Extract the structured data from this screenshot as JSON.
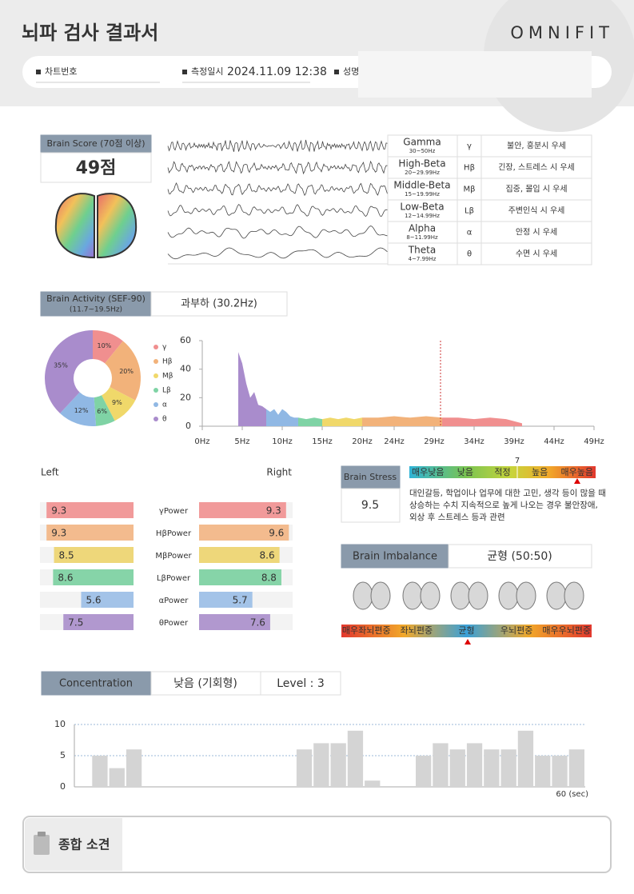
{
  "header": {
    "title": "뇌파 검사 결과서",
    "brand": "OMNIFIT",
    "fields": [
      {
        "label": "차트번호"
      },
      {
        "label": "측정일시",
        "value": "2024.11.09 12:38"
      },
      {
        "label": "성명"
      }
    ]
  },
  "brain_score": {
    "label": "Brain Score (70점 이상)",
    "value": "49점"
  },
  "wave_table": [
    {
      "name": "Gamma",
      "range": "30~50Hz",
      "symbol": "γ",
      "description": "불안, 흥분시 우세"
    },
    {
      "name": "High-Beta",
      "range": "20~29.99Hz",
      "symbol": "Hβ",
      "description": "긴장, 스트레스 시 우세"
    },
    {
      "name": "Middle-Beta",
      "range": "15~19.99Hz",
      "symbol": "Mβ",
      "description": "집중, 몰입 시 우세"
    },
    {
      "name": "Low-Beta",
      "range": "12~14.99Hz",
      "symbol": "Lβ",
      "description": "주변인식 시 우세"
    },
    {
      "name": "Alpha",
      "range": "8~11.99Hz",
      "symbol": "α",
      "description": "안정 시 우세"
    },
    {
      "name": "Theta",
      "range": "4~7.99Hz",
      "symbol": "θ",
      "description": "수면 시 우세"
    }
  ],
  "brain_activity": {
    "label": "Brain Activity (SEF-90)",
    "sublabel": "(11.7~19.5Hz)",
    "value": "과부하 (30.2Hz)"
  },
  "brain_stress": {
    "label": "Brain Stress",
    "value": "9.5",
    "scale": [
      "매우낮음",
      "낮음",
      "적정",
      "높음",
      "매우높음"
    ],
    "scale_marker": "7",
    "description": [
      "대인갈등, 학업이나 업무에 대한 고민, 생각 등이 많을 때",
      "상승하는 수치 지속적으로 높게 나오는 경우 불안장애,",
      "외상 후 스트레스 등과 관련"
    ]
  },
  "brain_imbalance": {
    "label": "Brain Imbalance",
    "value": "균형 (50:50)",
    "scale": [
      "매우좌뇌편중",
      "좌뇌편중",
      "균형",
      "우뇌편중",
      "매우우뇌편중"
    ]
  },
  "concentration": {
    "label": "Concentration",
    "value": "낮음 (기회형)",
    "level": "Level : 3"
  },
  "summary": {
    "title": "종합 소견"
  },
  "chart_data": [
    {
      "type": "pie",
      "categories": [
        "γ",
        "Hβ",
        "Mβ",
        "Lβ",
        "α",
        "θ"
      ],
      "values": [
        10,
        20,
        9,
        6,
        12,
        35
      ],
      "value_labels": [
        "10%",
        "20%",
        "9%",
        "6%",
        "12%",
        "35%"
      ],
      "colors": [
        "#f08f8f",
        "#f2b27a",
        "#f0d86a",
        "#7fd3a5",
        "#90b8e4",
        "#a98ccc"
      ]
    },
    {
      "type": "area",
      "series": [
        {
          "color": "#a98ccc",
          "x": [
            4.5,
            5,
            5.5,
            6,
            6.5,
            7,
            7.5,
            8
          ],
          "values": [
            52,
            44,
            30,
            20,
            24,
            15,
            14,
            12
          ]
        },
        {
          "color": "#90b8e4",
          "x": [
            8,
            8.5,
            9,
            9.5,
            10,
            10.5,
            11,
            11.5,
            12
          ],
          "values": [
            12,
            10,
            12,
            8,
            12,
            10,
            7,
            6,
            6
          ]
        },
        {
          "color": "#7fd3a5",
          "x": [
            12,
            13,
            14,
            15
          ],
          "values": [
            6,
            5,
            6,
            5
          ]
        },
        {
          "color": "#f0d86a",
          "x": [
            15,
            16,
            17,
            18,
            19,
            20
          ],
          "values": [
            5,
            6,
            5,
            6,
            5,
            6
          ]
        },
        {
          "color": "#f2b27a",
          "x": [
            20,
            22,
            24,
            26,
            28,
            30
          ],
          "values": [
            6,
            6,
            7,
            6,
            7,
            6
          ]
        },
        {
          "color": "#f08f8f",
          "x": [
            30,
            32,
            34,
            36,
            38,
            40
          ],
          "values": [
            6,
            6,
            5,
            6,
            5,
            2
          ]
        }
      ],
      "xlim": [
        0,
        49
      ],
      "ylim": [
        0,
        60
      ],
      "xticks": [
        {
          "value": 0,
          "label": "0Hz"
        },
        {
          "value": 5,
          "label": "5Hz"
        },
        {
          "value": 10,
          "label": "10Hz"
        },
        {
          "value": 15,
          "label": "15Hz"
        },
        {
          "value": 20,
          "label": "20Hz"
        },
        {
          "value": 24,
          "label": "24Hz"
        },
        {
          "value": 29,
          "label": "29Hz"
        },
        {
          "value": 34,
          "label": "34Hz"
        },
        {
          "value": 39,
          "label": "39Hz"
        },
        {
          "value": 44,
          "label": "44Hz"
        },
        {
          "value": 49,
          "label": "49Hz"
        }
      ],
      "yticks": [
        0,
        20,
        40,
        60
      ],
      "marker_x": 29.8
    },
    {
      "type": "butterfly",
      "categories": [
        "γPower",
        "HβPower",
        "MβPower",
        "LβPower",
        "αPower",
        "θPower"
      ],
      "colors": [
        "#f19a9a",
        "#f3bb8e",
        "#eed77a",
        "#86d4a8",
        "#a3c3e8",
        "#b198cf"
      ],
      "xlim": [
        0,
        10
      ],
      "series": [
        {
          "name": "Left",
          "values": [
            9.3,
            9.3,
            8.5,
            8.6,
            5.6,
            7.5
          ]
        },
        {
          "name": "Right",
          "values": [
            9.3,
            9.6,
            8.6,
            8.8,
            5.7,
            7.6
          ]
        }
      ]
    },
    {
      "type": "bar",
      "values": [
        0,
        5,
        3,
        6,
        0,
        0,
        0,
        0,
        0,
        0,
        0,
        0,
        0,
        6,
        7,
        7,
        9,
        1,
        0,
        0,
        5,
        7,
        6,
        7,
        6,
        6,
        9,
        5,
        5,
        6
      ],
      "ylim": [
        0,
        10
      ],
      "yticks": [
        0,
        5,
        10
      ],
      "xlabel": "60 (sec)",
      "color": "#d4d4d4"
    }
  ]
}
